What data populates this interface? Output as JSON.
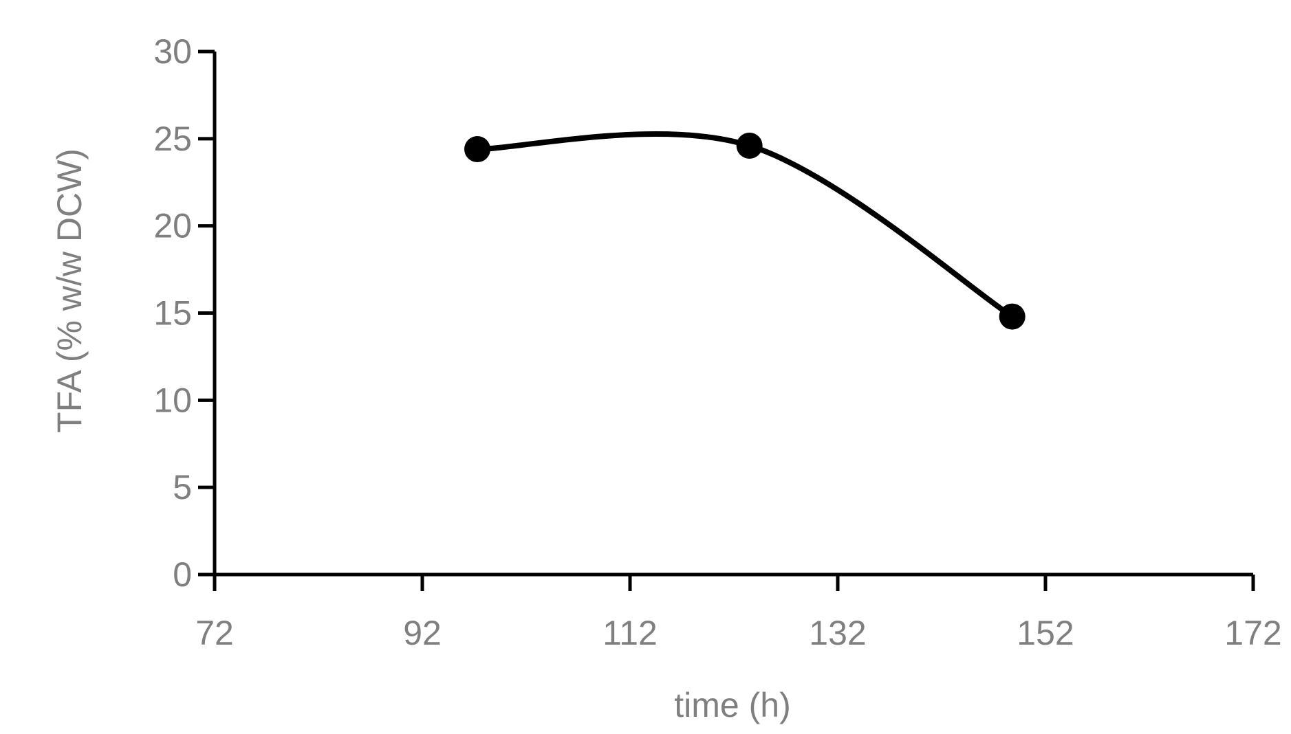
{
  "chart_data": {
    "type": "line",
    "title": "",
    "xlabel": "time (h)",
    "ylabel": "TFA (%  w/w DCW)",
    "xlim": [
      72,
      172
    ],
    "ylim": [
      0,
      30
    ],
    "x_ticks": [
      72,
      92,
      112,
      132,
      152,
      172
    ],
    "y_ticks": [
      0,
      5,
      10,
      15,
      20,
      25,
      30
    ],
    "x_tick_labels": [
      "72",
      "92",
      "112",
      "132",
      "152",
      "172"
    ],
    "y_tick_labels": [
      "0",
      "5",
      "10",
      "15",
      "20",
      "25",
      "30"
    ],
    "grid": false,
    "legend": "none",
    "smooth": true,
    "colors": {
      "series": "#000000",
      "axis": "#000000",
      "text": "#7f7f7f"
    },
    "series": [
      {
        "x": [
          97.3,
          123.5,
          148.8
        ],
        "values": [
          24.4,
          24.6,
          14.8
        ]
      }
    ]
  }
}
